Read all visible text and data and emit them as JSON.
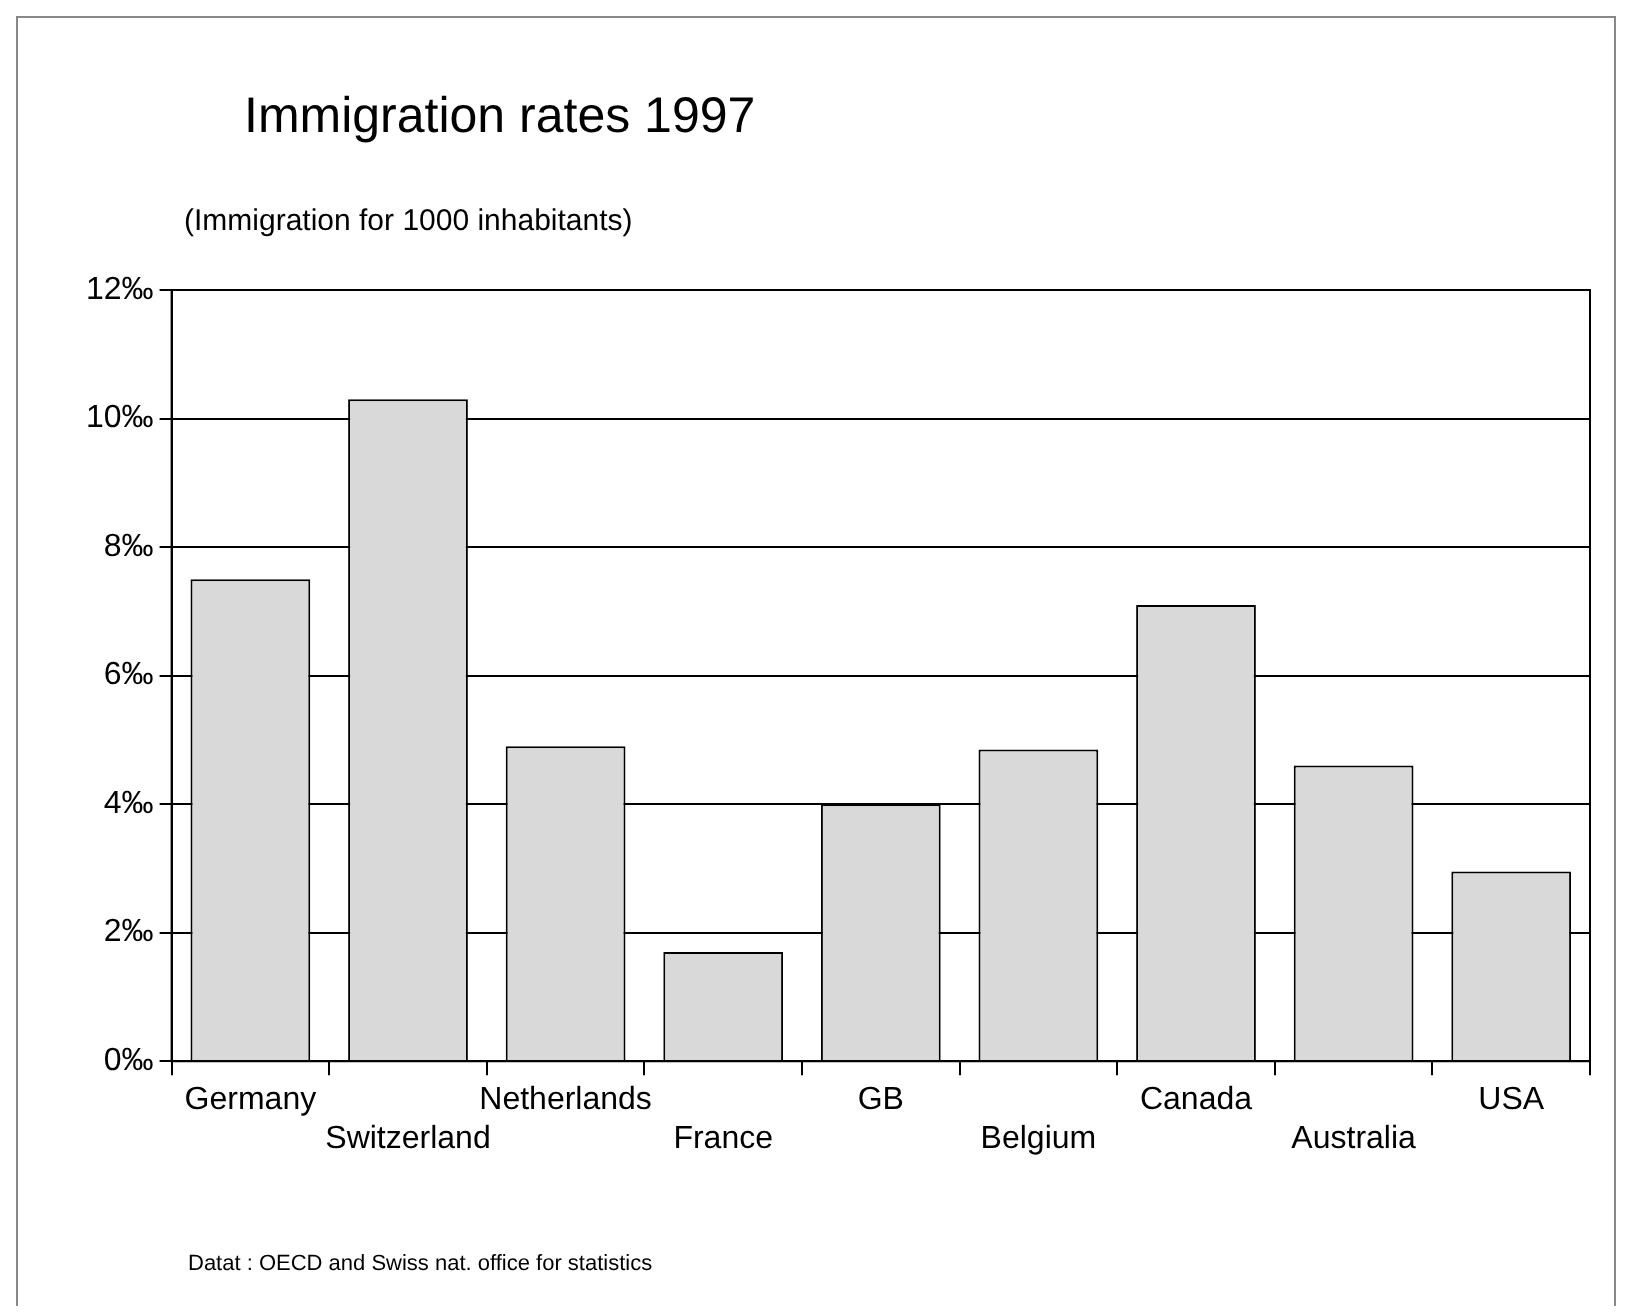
{
  "chart_data": {
    "type": "bar",
    "title": "Immigration rates 1997",
    "subtitle": "(Immigration for 1000 inhabitants)",
    "categories": [
      "Germany",
      "Switzerland",
      "Netherlands",
      "France",
      "GB",
      "Belgium",
      "Canada",
      "Australia",
      "USA"
    ],
    "values": [
      7.5,
      10.3,
      4.9,
      1.7,
      4.0,
      4.85,
      7.1,
      4.6,
      2.95
    ],
    "color": "#d9d9d9",
    "ylim": [
      0,
      12
    ],
    "yticks": [
      {
        "value": 0,
        "label": "0‰"
      },
      {
        "value": 2,
        "label": "2‰"
      },
      {
        "value": 4,
        "label": "4‰"
      },
      {
        "value": 6,
        "label": "6‰"
      },
      {
        "value": 8,
        "label": "8‰"
      },
      {
        "value": 10,
        "label": "10‰"
      },
      {
        "value": 12,
        "label": "12‰"
      }
    ],
    "grid": "y",
    "annotations": [
      "Datat : OECD and Swiss nat. office for statistics"
    ]
  }
}
